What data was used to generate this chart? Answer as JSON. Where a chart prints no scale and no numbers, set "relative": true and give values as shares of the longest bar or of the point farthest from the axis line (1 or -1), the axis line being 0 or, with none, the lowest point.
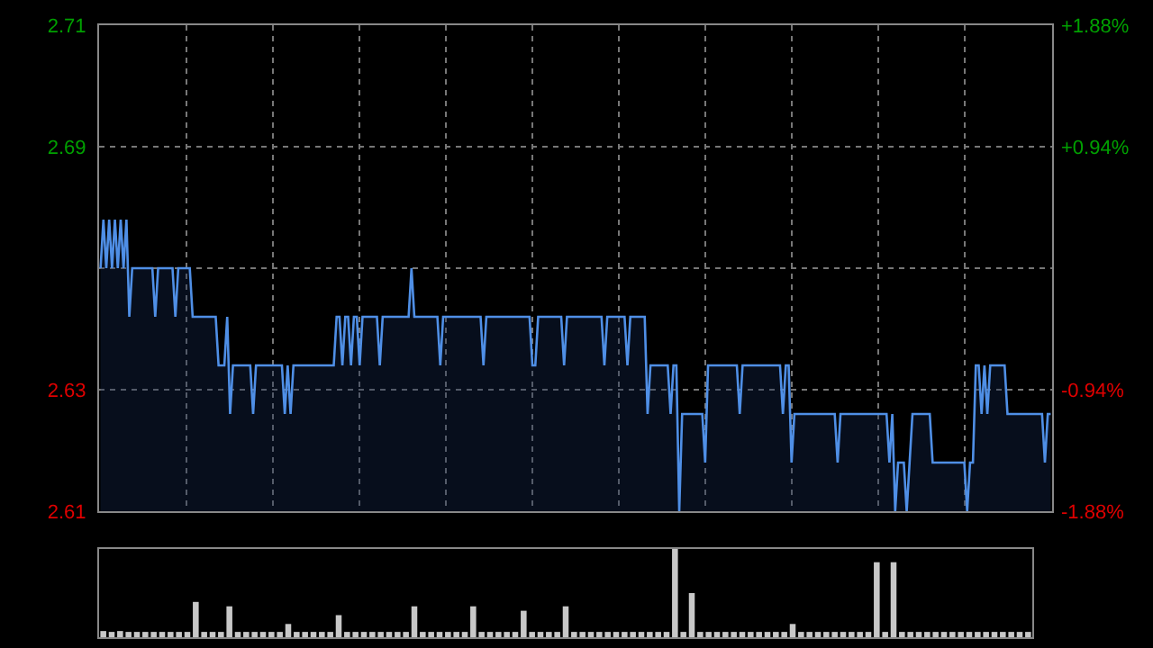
{
  "chart_data": [
    {
      "type": "area",
      "color": "#4f8fe6",
      "categories": [
        null,
        null,
        null,
        null,
        null,
        null,
        null,
        null,
        null,
        null,
        null,
        null,
        null,
        null,
        null,
        null,
        null,
        null,
        null,
        null,
        null,
        null,
        null,
        null,
        null,
        null,
        null,
        null,
        null,
        null,
        null,
        null,
        null,
        null,
        null,
        null,
        null,
        null,
        null,
        null,
        null,
        null,
        null,
        null,
        null,
        null,
        null,
        null,
        null,
        null,
        null,
        null,
        null,
        null,
        null,
        null,
        null,
        null,
        null,
        null,
        null,
        null,
        null,
        null,
        null,
        null,
        null,
        null,
        null,
        null,
        null,
        null,
        null,
        null,
        null,
        null,
        null,
        null,
        null,
        null,
        null,
        null,
        null,
        null,
        null,
        null,
        null,
        null,
        null,
        null,
        null,
        null,
        null,
        null,
        null,
        null,
        null,
        null,
        null,
        null,
        null,
        null,
        null,
        null,
        null,
        null,
        null,
        null,
        null,
        null,
        null,
        null,
        null,
        null,
        null,
        null,
        null,
        null,
        null,
        null,
        null,
        null,
        null,
        null,
        null,
        null,
        null,
        null,
        null,
        null,
        null,
        null,
        null,
        null,
        null,
        null,
        null,
        null,
        null,
        null,
        null,
        null,
        null,
        null,
        null,
        null,
        null,
        null,
        null,
        null,
        null,
        null,
        null,
        null,
        null,
        null,
        null,
        null,
        null,
        null,
        null,
        null,
        null,
        null,
        null,
        null,
        null,
        null,
        null,
        null,
        null,
        null,
        null,
        null,
        null,
        null,
        null,
        null,
        null,
        null,
        null,
        null,
        null,
        null,
        null,
        null,
        null,
        null,
        null,
        null,
        null,
        null,
        null,
        null,
        null,
        null,
        null,
        null,
        null,
        null,
        null,
        null,
        null,
        null,
        null,
        null,
        null,
        null,
        null,
        null,
        null,
        null,
        null,
        null,
        null,
        null,
        null,
        null,
        null,
        null,
        null,
        null,
        null,
        null,
        null,
        null,
        null,
        null,
        null,
        null,
        null,
        null,
        null,
        null,
        null,
        null,
        null,
        null,
        null,
        null,
        null,
        null,
        null,
        null,
        null,
        null,
        null,
        null,
        null,
        null,
        null,
        null,
        null,
        null,
        null,
        null,
        null,
        null,
        null,
        null,
        null,
        null,
        null,
        null,
        null,
        null,
        null,
        null,
        null,
        null,
        null,
        null,
        null,
        null,
        null,
        null,
        null,
        null,
        null,
        null,
        null,
        null,
        null,
        null,
        null,
        null,
        null,
        null,
        null,
        null,
        null,
        null,
        null,
        null,
        null,
        null,
        null,
        null,
        null,
        null,
        null,
        null,
        null,
        null,
        null,
        null,
        null,
        null,
        null,
        null,
        null,
        null,
        null,
        null,
        null,
        null,
        null,
        null,
        null,
        null,
        null,
        null,
        null,
        null,
        null,
        null,
        null,
        null,
        null,
        null,
        null
      ],
      "ylim": [
        2.61,
        2.71
      ],
      "yticks": [
        2.61,
        {
          "value": 2.635,
          "label": "2.63"
        },
        {
          "value": 2.66,
          "label": null
        },
        {
          "value": 2.685,
          "label": "2.69"
        },
        2.71
      ],
      "y2lim": [
        -1.88,
        1.88
      ],
      "y2ticks": [
        {
          "value": -1.88,
          "label": "-1.88%"
        },
        {
          "value": -0.94,
          "label": "-0.94%"
        },
        {
          "value": 0.94,
          "label": "+0.94%"
        },
        {
          "value": 1.88,
          "label": "+1.88%"
        }
      ],
      "grid": true,
      "values": [
        2.66,
        2.67,
        2.66,
        2.67,
        2.66,
        2.67,
        2.66,
        2.67,
        2.66,
        2.67,
        2.65,
        2.66,
        2.66,
        2.66,
        2.66,
        2.66,
        2.66,
        2.66,
        2.66,
        2.65,
        2.66,
        2.66,
        2.66,
        2.66,
        2.66,
        2.66,
        2.65,
        2.66,
        2.66,
        2.66,
        2.66,
        2.66,
        2.65,
        2.65,
        2.65,
        2.65,
        2.65,
        2.65,
        2.65,
        2.65,
        2.65,
        2.64,
        2.64,
        2.64,
        2.65,
        2.63,
        2.64,
        2.64,
        2.64,
        2.64,
        2.64,
        2.64,
        2.64,
        2.63,
        2.64,
        2.64,
        2.64,
        2.64,
        2.64,
        2.64,
        2.64,
        2.64,
        2.64,
        2.64,
        2.63,
        2.64,
        2.63,
        2.64,
        2.64,
        2.64,
        2.64,
        2.64,
        2.64,
        2.64,
        2.64,
        2.64,
        2.64,
        2.64,
        2.64,
        2.64,
        2.64,
        2.64,
        2.65,
        2.65,
        2.64,
        2.65,
        2.65,
        2.64,
        2.65,
        2.65,
        2.64,
        2.65,
        2.65,
        2.65,
        2.65,
        2.65,
        2.65,
        2.64,
        2.65,
        2.65,
        2.65,
        2.65,
        2.65,
        2.65,
        2.65,
        2.65,
        2.65,
        2.65,
        2.66,
        2.65,
        2.65,
        2.65,
        2.65,
        2.65,
        2.65,
        2.65,
        2.65,
        2.65,
        2.64,
        2.65,
        2.65,
        2.65,
        2.65,
        2.65,
        2.65,
        2.65,
        2.65,
        2.65,
        2.65,
        2.65,
        2.65,
        2.65,
        2.65,
        2.64,
        2.65,
        2.65,
        2.65,
        2.65,
        2.65,
        2.65,
        2.65,
        2.65,
        2.65,
        2.65,
        2.65,
        2.65,
        2.65,
        2.65,
        2.65,
        2.65,
        2.64,
        2.64,
        2.65,
        2.65,
        2.65,
        2.65,
        2.65,
        2.65,
        2.65,
        2.65,
        2.65,
        2.64,
        2.65,
        2.65,
        2.65,
        2.65,
        2.65,
        2.65,
        2.65,
        2.65,
        2.65,
        2.65,
        2.65,
        2.65,
        2.65,
        2.64,
        2.65,
        2.65,
        2.65,
        2.65,
        2.65,
        2.65,
        2.65,
        2.64,
        2.65,
        2.65,
        2.65,
        2.65,
        2.65,
        2.65,
        2.63,
        2.64,
        2.64,
        2.64,
        2.64,
        2.64,
        2.64,
        2.64,
        2.63,
        2.64,
        2.64,
        2.61,
        2.63,
        2.63,
        2.63,
        2.63,
        2.63,
        2.63,
        2.63,
        2.63,
        2.62,
        2.64,
        2.64,
        2.64,
        2.64,
        2.64,
        2.64,
        2.64,
        2.64,
        2.64,
        2.64,
        2.64,
        2.63,
        2.64,
        2.64,
        2.64,
        2.64,
        2.64,
        2.64,
        2.64,
        2.64,
        2.64,
        2.64,
        2.64,
        2.64,
        2.64,
        2.64,
        2.63,
        2.64,
        2.64,
        2.62,
        2.63,
        2.63,
        2.63,
        2.63,
        2.63,
        2.63,
        2.63,
        2.63,
        2.63,
        2.63,
        2.63,
        2.63,
        2.63,
        2.63,
        2.63,
        2.62,
        2.63,
        2.63,
        2.63,
        2.63,
        2.63,
        2.63,
        2.63,
        2.63,
        2.63,
        2.63,
        2.63,
        2.63,
        2.63,
        2.63,
        2.63,
        2.63,
        2.63,
        2.62,
        2.63,
        2.61,
        2.62,
        2.62,
        2.62,
        2.61,
        2.62,
        2.63,
        2.63,
        2.63,
        2.63,
        2.63,
        2.63,
        2.63,
        2.62,
        2.62,
        2.62,
        2.62,
        2.62,
        2.62,
        2.62,
        2.62,
        2.62,
        2.62,
        2.62,
        2.62,
        2.61,
        2.62,
        2.62,
        2.64,
        2.64,
        2.63,
        2.64,
        2.63,
        2.64,
        2.64,
        2.64,
        2.64,
        2.64,
        2.64,
        2.63,
        2.63,
        2.63,
        2.63,
        2.63,
        2.63,
        2.63,
        2.63,
        2.63,
        2.63,
        2.63,
        2.63,
        2.63,
        2.62,
        2.63,
        2.63
      ]
    },
    {
      "type": "bar",
      "relative": true,
      "color": "#c8c8c8",
      "categories": [
        null,
        null,
        null,
        null,
        null,
        null,
        null,
        null,
        null,
        null,
        null,
        null,
        null,
        null,
        null,
        null,
        null,
        null,
        null,
        null,
        null,
        null,
        null,
        null,
        null,
        null,
        null,
        null,
        null,
        null,
        null,
        null,
        null,
        null,
        null,
        null,
        null,
        null,
        null,
        null,
        null,
        null,
        null,
        null,
        null,
        null,
        null,
        null,
        null,
        null,
        null,
        null,
        null,
        null,
        null,
        null,
        null,
        null,
        null,
        null,
        null,
        null,
        null,
        null,
        null,
        null,
        null,
        null,
        null,
        null,
        null,
        null,
        null,
        null,
        null,
        null,
        null,
        null,
        null,
        null,
        null,
        null,
        null,
        null,
        null,
        null,
        null,
        null,
        null,
        null,
        null,
        null,
        null,
        null,
        null,
        null,
        null,
        null,
        null,
        null,
        null,
        null,
        null,
        null,
        null,
        null,
        null,
        null,
        null,
        null,
        null
      ],
      "values": [
        0.07,
        0.06,
        0.07,
        0.06,
        0.06,
        0.06,
        0.06,
        0.06,
        0.06,
        0.06,
        0.06,
        0.4,
        0.06,
        0.06,
        0.06,
        0.35,
        0.06,
        0.06,
        0.06,
        0.06,
        0.06,
        0.06,
        0.15,
        0.06,
        0.06,
        0.06,
        0.06,
        0.06,
        0.25,
        0.06,
        0.06,
        0.06,
        0.06,
        0.06,
        0.06,
        0.06,
        0.06,
        0.35,
        0.06,
        0.06,
        0.06,
        0.06,
        0.06,
        0.06,
        0.35,
        0.06,
        0.06,
        0.06,
        0.06,
        0.06,
        0.3,
        0.06,
        0.06,
        0.06,
        0.06,
        0.35,
        0.06,
        0.06,
        0.06,
        0.06,
        0.06,
        0.06,
        0.06,
        0.06,
        0.06,
        0.06,
        0.06,
        0.06,
        1,
        0.06,
        0.5,
        0.06,
        0.06,
        0.06,
        0.06,
        0.06,
        0.06,
        0.06,
        0.06,
        0.06,
        0.06,
        0.06,
        0.15,
        0.06,
        0.06,
        0.06,
        0.06,
        0.06,
        0.06,
        0.06,
        0.06,
        0.06,
        0.85,
        0.06,
        0.85,
        0.06,
        0.06,
        0.06,
        0.06,
        0.06,
        0.06,
        0.06,
        0.06,
        0.06,
        0.06,
        0.06,
        0.06,
        0.06,
        0.06,
        0.06,
        0.06
      ]
    }
  ]
}
